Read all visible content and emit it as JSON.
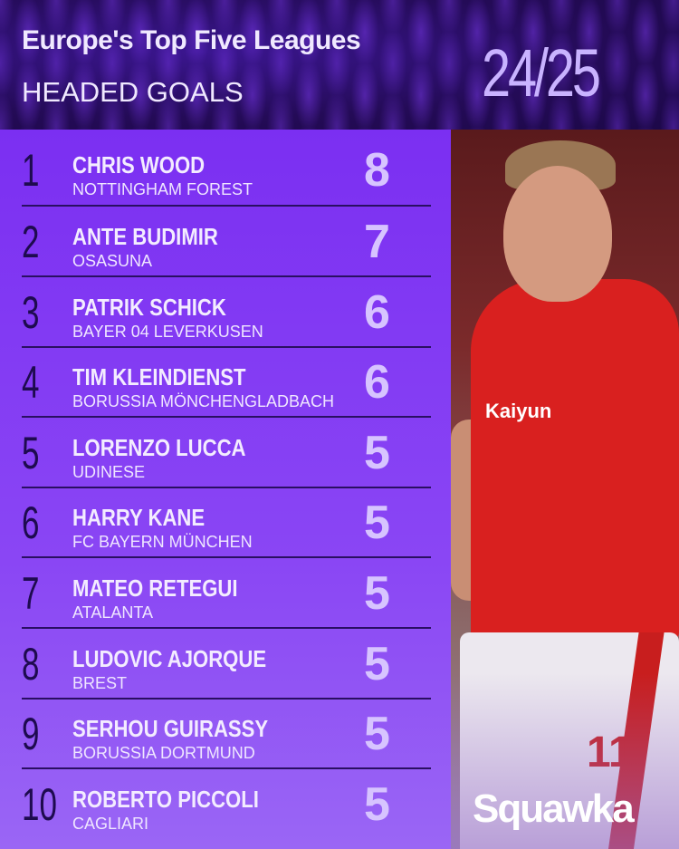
{
  "header": {
    "title": "Europe's Top Five Leagues",
    "subtitle": "HEADED GOALS",
    "season": "24/25"
  },
  "rows": [
    {
      "rank": "1",
      "name": "CHRIS WOOD",
      "club": "NOTTINGHAM FOREST",
      "goals": "8"
    },
    {
      "rank": "2",
      "name": "ANTE BUDIMIR",
      "club": "OSASUNA",
      "goals": "7"
    },
    {
      "rank": "3",
      "name": "PATRIK SCHICK",
      "club": "BAYER 04 LEVERKUSEN",
      "goals": "6"
    },
    {
      "rank": "4",
      "name": "TIM KLEINDIENST",
      "club": "BORUSSIA MÖNCHENGLADBACH",
      "goals": "6"
    },
    {
      "rank": "5",
      "name": "LORENZO LUCCA",
      "club": "UDINESE",
      "goals": "5"
    },
    {
      "rank": "6",
      "name": "HARRY KANE",
      "club": "FC BAYERN MÜNCHEN",
      "goals": "5"
    },
    {
      "rank": "7",
      "name": "MATEO RETEGUI",
      "club": "ATALANTA",
      "goals": "5"
    },
    {
      "rank": "8",
      "name": "LUDOVIC AJORQUE",
      "club": "BREST",
      "goals": "5"
    },
    {
      "rank": "9",
      "name": "SERHOU GUIRASSY",
      "club": "BORUSSIA DORTMUND",
      "goals": "5"
    },
    {
      "rank": "10",
      "name": "ROBERTO PICCOLI",
      "club": "CAGLIARI",
      "goals": "5"
    }
  ],
  "photo": {
    "sponsor": "Kaiyun",
    "shirt_number": "11"
  },
  "brand": {
    "logo": "Squawka"
  },
  "colors": {
    "header_bg": "#240b57",
    "list_bg": "#7b2ff2",
    "accent": "#d7c4ff",
    "shirt": "#d9201f"
  }
}
